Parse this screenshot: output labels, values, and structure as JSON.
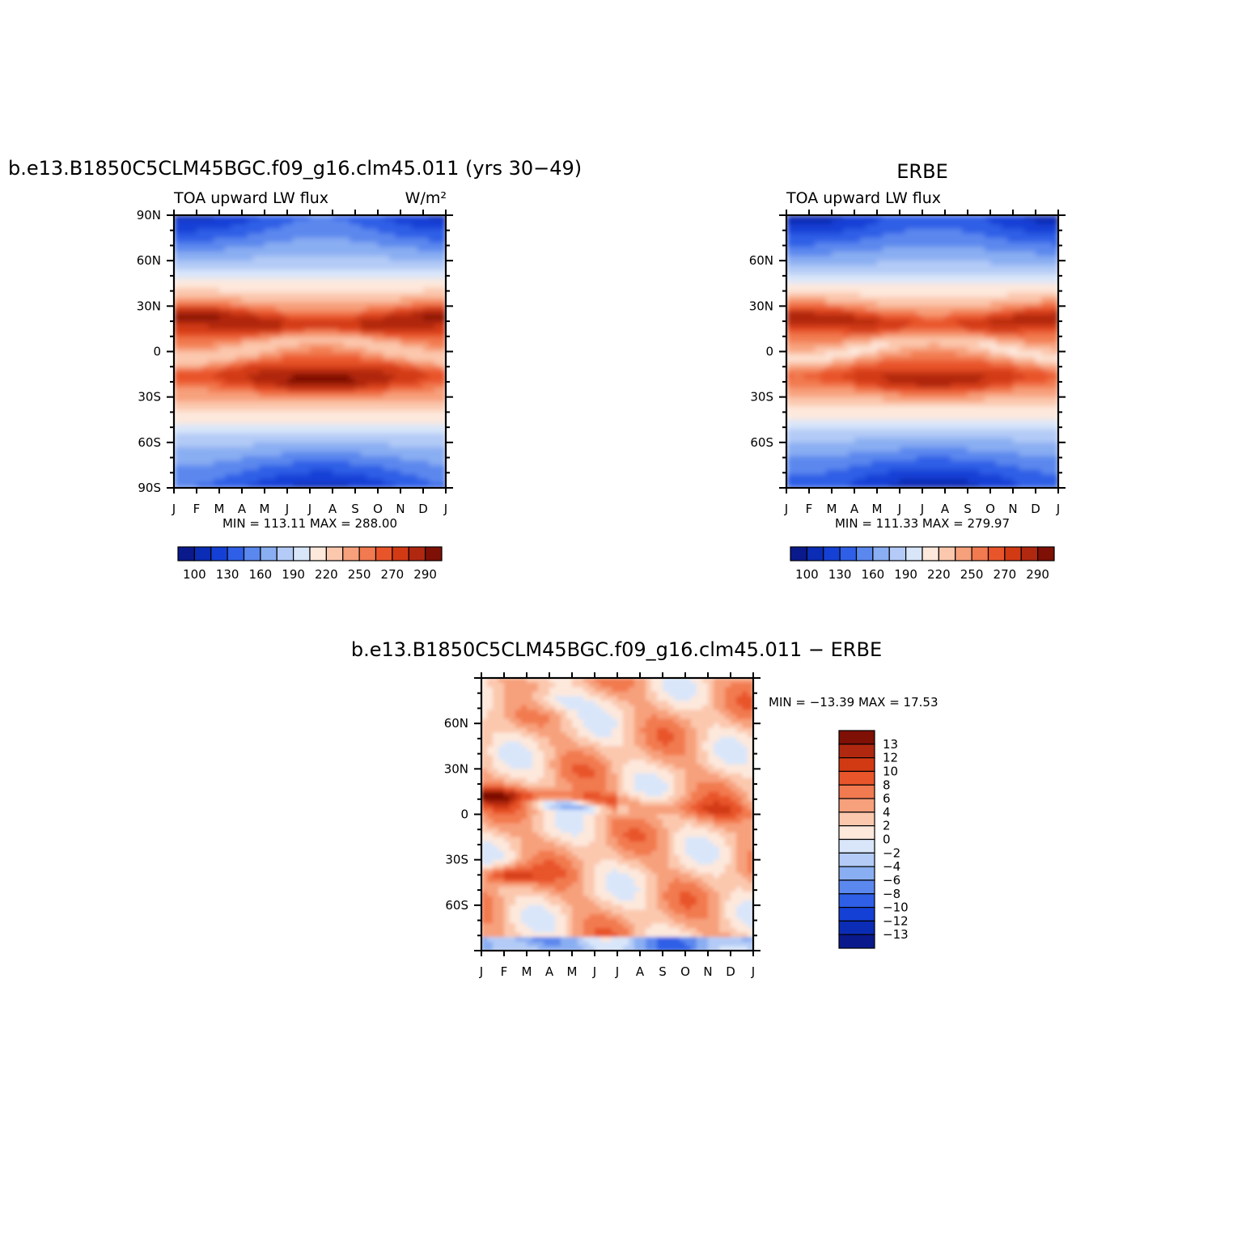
{
  "figure": {
    "units": "W/m",
    "units_superscript": "2"
  },
  "colormaps": {
    "absolute": [
      "#0a1a8c",
      "#0b2cb4",
      "#1440d6",
      "#2e5fe6",
      "#5b88ee",
      "#8aaef2",
      "#b3cbf6",
      "#d9e6fa",
      "#fde8dc",
      "#fbc8ae",
      "#f7a07c",
      "#f27a50",
      "#e9552a",
      "#d23a14",
      "#b02810",
      "#7e1006"
    ],
    "difference": [
      "#0a1a8c",
      "#0b2cb4",
      "#1440d6",
      "#2e5fe6",
      "#5b88ee",
      "#8aaef2",
      "#b3cbf6",
      "#d9e6fa",
      "#fde8dc",
      "#fbc8ae",
      "#f7a07c",
      "#f27a50",
      "#e9552a",
      "#d23a14",
      "#b02810",
      "#7e1006"
    ]
  },
  "chart_data": [
    {
      "type": "heatmap",
      "id": "model",
      "title": "b.e13.B1850C5CLM45BGC.f09_g16.clm45.011 (yrs 30−49)",
      "subtitle_left": "TOA upward LW flux",
      "subtitle_right": "W/m²",
      "xlabel": "",
      "ylabel": "",
      "x_ticks": [
        "J",
        "F",
        "M",
        "A",
        "M",
        "J",
        "J",
        "A",
        "S",
        "O",
        "N",
        "D",
        "J"
      ],
      "y_ticks": [
        "90N",
        "60N",
        "30N",
        "0",
        "30S",
        "60S",
        "90S"
      ],
      "ylim": [
        -90,
        90
      ],
      "stats_label": "MIN = 113.11 MAX = 288.00",
      "min": 113.11,
      "max": 288.0,
      "colorbar_labels": [
        "100",
        "130",
        "160",
        "190",
        "220",
        "250",
        "270",
        "290"
      ]
    },
    {
      "type": "heatmap",
      "id": "obs",
      "title": "ERBE",
      "subtitle_left": "TOA upward LW flux",
      "x_ticks": [
        "J",
        "F",
        "M",
        "A",
        "M",
        "J",
        "J",
        "A",
        "S",
        "O",
        "N",
        "D",
        "J"
      ],
      "y_ticks": [
        "60N",
        "30N",
        "0",
        "30S",
        "60S"
      ],
      "ylim": [
        -90,
        90
      ],
      "stats_label": "MIN = 111.33 MAX = 279.97",
      "min": 111.33,
      "max": 279.97,
      "colorbar_labels": [
        "100",
        "130",
        "160",
        "190",
        "220",
        "250",
        "270",
        "290"
      ]
    },
    {
      "type": "heatmap",
      "id": "diff",
      "title": "b.e13.B1850C5CLM45BGC.f09_g16.clm45.011 − ERBE",
      "x_ticks": [
        "J",
        "F",
        "M",
        "A",
        "M",
        "J",
        "J",
        "A",
        "S",
        "O",
        "N",
        "D",
        "J"
      ],
      "y_ticks": [
        "60N",
        "30N",
        "0",
        "30S",
        "60S"
      ],
      "ylim": [
        -90,
        90
      ],
      "stats_label": "MIN = −13.39 MAX =   17.53",
      "min": -13.39,
      "max": 17.53,
      "colorbar_labels": [
        "13",
        "12",
        "10",
        "8",
        "6",
        "4",
        "2",
        "0",
        "−2",
        "−4",
        "−6",
        "−8",
        "−10",
        "−12",
        "−13"
      ]
    }
  ]
}
